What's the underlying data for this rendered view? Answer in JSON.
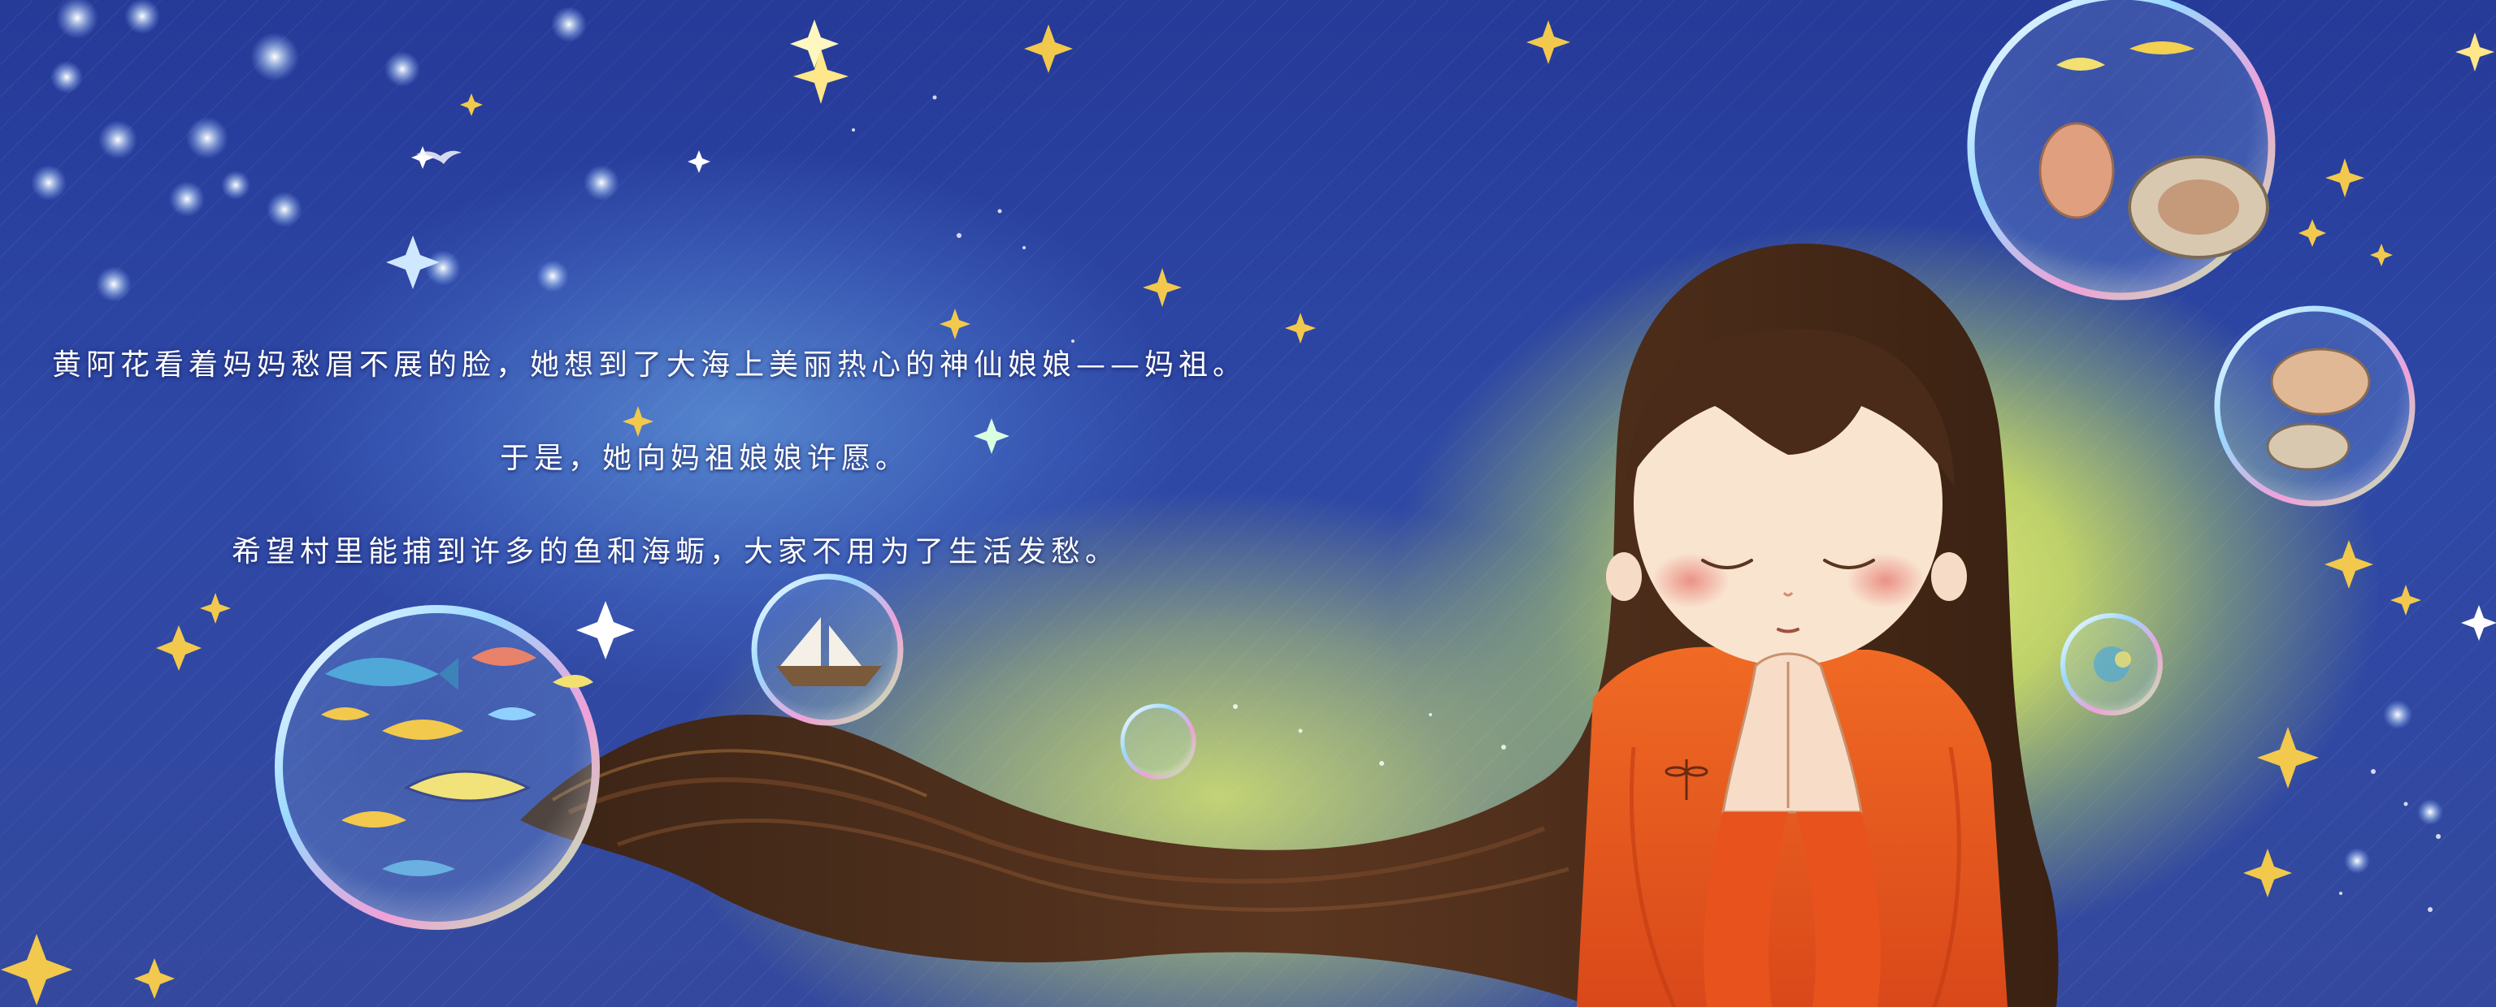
{
  "page": {
    "lines": [
      "黄阿花看着妈妈愁眉不展的脸，她想到了大海上美丽热心的神仙娘娘——妈祖。",
      "于是，她向妈祖娘娘许愿。",
      "希望村里能捕到许多的鱼和海蛎，大家不用为了生活发愁。"
    ]
  },
  "colors": {
    "sky": "#2a3f9a",
    "glow": "#e4f070",
    "hair": "#4a2a18",
    "robe": "#e8521c",
    "text": "#ffffff"
  }
}
